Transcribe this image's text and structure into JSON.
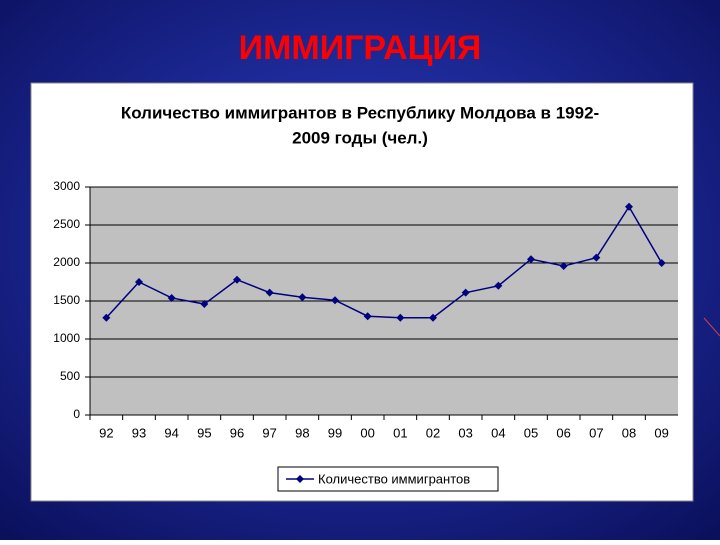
{
  "slide_title": "ИММИГРАЦИЯ",
  "chart_data": {
    "type": "line",
    "title": [
      "Количество иммигрантов в Республику Молдова в 1992-",
      "2009 годы (чел.)"
    ],
    "categories": [
      "92",
      "93",
      "94",
      "95",
      "96",
      "97",
      "98",
      "99",
      "00",
      "01",
      "02",
      "03",
      "04",
      "05",
      "06",
      "07",
      "08",
      "09"
    ],
    "series": [
      {
        "name": "Количество иммигрантов",
        "color": "#000080",
        "values": [
          1280,
          1750,
          1540,
          1460,
          1780,
          1610,
          1550,
          1510,
          1300,
          1280,
          1280,
          1610,
          1700,
          2050,
          1960,
          2070,
          2740,
          2000
        ]
      }
    ],
    "ylim": [
      0,
      3000
    ],
    "yticks": [
      0,
      500,
      1000,
      1500,
      2000,
      2500,
      3000
    ],
    "grid": true,
    "legend": "bottom"
  }
}
